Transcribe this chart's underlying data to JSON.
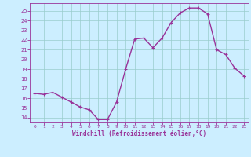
{
  "x": [
    0,
    1,
    2,
    3,
    4,
    5,
    6,
    7,
    8,
    9,
    10,
    11,
    12,
    13,
    14,
    15,
    16,
    17,
    18,
    19,
    20,
    21,
    22,
    23
  ],
  "y": [
    16.5,
    16.4,
    16.6,
    16.1,
    15.6,
    15.1,
    14.8,
    13.8,
    13.8,
    15.6,
    19.0,
    22.1,
    22.2,
    21.2,
    22.2,
    23.8,
    24.8,
    25.3,
    25.3,
    24.7,
    21.0,
    20.5,
    19.1,
    18.3
  ],
  "line_color": "#993399",
  "marker": "+",
  "marker_size": 3,
  "line_width": 1.0,
  "bg_color": "#cceeff",
  "grid_color": "#99cccc",
  "xlabel": "Windchill (Refroidissement éolien,°C)",
  "xlabel_color": "#993399",
  "tick_color": "#993399",
  "label_color": "#993399",
  "ylim": [
    13.5,
    25.8
  ],
  "yticks": [
    14,
    15,
    16,
    17,
    18,
    19,
    20,
    21,
    22,
    23,
    24,
    25
  ],
  "xticks": [
    0,
    1,
    2,
    3,
    4,
    5,
    6,
    7,
    8,
    9,
    10,
    11,
    12,
    13,
    14,
    15,
    16,
    17,
    18,
    19,
    20,
    21,
    22,
    23
  ],
  "xlim": [
    -0.5,
    23.5
  ]
}
